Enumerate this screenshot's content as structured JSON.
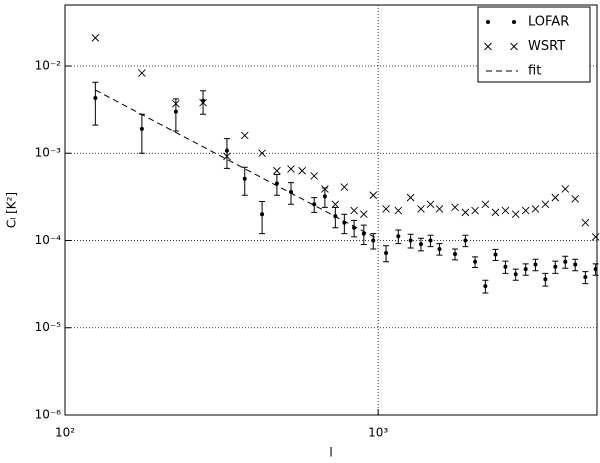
{
  "chart_data": {
    "type": "scatter",
    "xlabel": "l",
    "ylabel": "Cₗ [K²]",
    "xlog": true,
    "ylog": true,
    "grid": true,
    "legend": "upper right",
    "xlim": [
      100,
      5000
    ],
    "ylim": [
      1e-06,
      0.05
    ],
    "xticks": [
      {
        "value": 100,
        "label": "10²"
      },
      {
        "value": 1000,
        "label": "10³"
      }
    ],
    "yticks": [
      {
        "value": 1e-06,
        "label": "10⁻⁶"
      },
      {
        "value": 1e-05,
        "label": "10⁻⁵"
      },
      {
        "value": 0.0001,
        "label": "10⁻⁴"
      },
      {
        "value": 0.001,
        "label": "10⁻³"
      },
      {
        "value": 0.01,
        "label": "10⁻²"
      }
    ],
    "series": [
      {
        "name": "LOFAR",
        "color": "#000000",
        "marker": "dot",
        "x": [
          125,
          176,
          226,
          276,
          329,
          375,
          426,
          475,
          527,
          625,
          676,
          730,
          780,
          838,
          900,
          965,
          1060,
          1160,
          1270,
          1370,
          1470,
          1570,
          1760,
          1900,
          2040,
          2200,
          2370,
          2550,
          2750,
          2960,
          3180,
          3420,
          3680,
          3960,
          4260,
          4590,
          4950
        ],
        "values": [
          0.0043,
          0.0019,
          0.003,
          0.004,
          0.00107,
          0.00051,
          0.0002,
          0.00045,
          0.00036,
          0.00026,
          0.00032,
          0.00019,
          0.00016,
          0.00014,
          0.00012,
          0.0001,
          7.2e-05,
          0.000112,
          0.0001,
          9.1e-05,
          0.0001,
          8e-05,
          7e-05,
          0.0001,
          5.7e-05,
          3e-05,
          6.9e-05,
          5e-05,
          4.1e-05,
          4.7e-05,
          5.3e-05,
          3.6e-05,
          5e-05,
          5.7e-05,
          5.3e-05,
          3.8e-05,
          4.7e-05
        ],
        "errors": [
          0.0022,
          0.0009,
          0.0012,
          0.0012,
          0.0004,
          0.00018,
          8e-05,
          0.00012,
          0.0001,
          5e-05,
          8e-05,
          5e-05,
          4e-05,
          3e-05,
          3e-05,
          2e-05,
          1.5e-05,
          2e-05,
          1.8e-05,
          1.5e-05,
          1.5e-05,
          1.2e-05,
          1e-05,
          1.5e-05,
          8e-06,
          5e-06,
          1e-05,
          8e-06,
          6e-06,
          7e-06,
          8e-06,
          6e-06,
          8e-06,
          9e-06,
          8e-06,
          6e-06,
          7e-06
        ]
      },
      {
        "name": "WSRT",
        "color": "#000000",
        "marker": "x",
        "x": [
          125,
          176,
          226,
          276,
          329,
          375,
          426,
          475,
          527,
          572,
          625,
          676,
          730,
          780,
          838,
          900,
          965,
          1060,
          1160,
          1270,
          1370,
          1470,
          1570,
          1760,
          1900,
          2040,
          2200,
          2370,
          2550,
          2750,
          2960,
          3180,
          3420,
          3680,
          3960,
          4260,
          4590,
          4950
        ],
        "values": [
          0.021,
          0.0083,
          0.0037,
          0.0038,
          0.00092,
          0.0016,
          0.001,
          0.00063,
          0.00066,
          0.00063,
          0.00055,
          0.00039,
          0.00026,
          0.00041,
          0.00022,
          0.0002,
          0.00033,
          0.00023,
          0.00022,
          0.00031,
          0.00023,
          0.00026,
          0.00023,
          0.00024,
          0.00021,
          0.00022,
          0.00026,
          0.00021,
          0.00022,
          0.0002,
          0.00022,
          0.00023,
          0.00026,
          0.00031,
          0.00039,
          0.0003,
          0.00016,
          0.00011
        ]
      },
      {
        "name": "fit",
        "color": "#000000",
        "marker": "dashed-line",
        "x": [
          125,
          1000
        ],
        "values": [
          0.0053,
          0.000104
        ]
      }
    ]
  }
}
